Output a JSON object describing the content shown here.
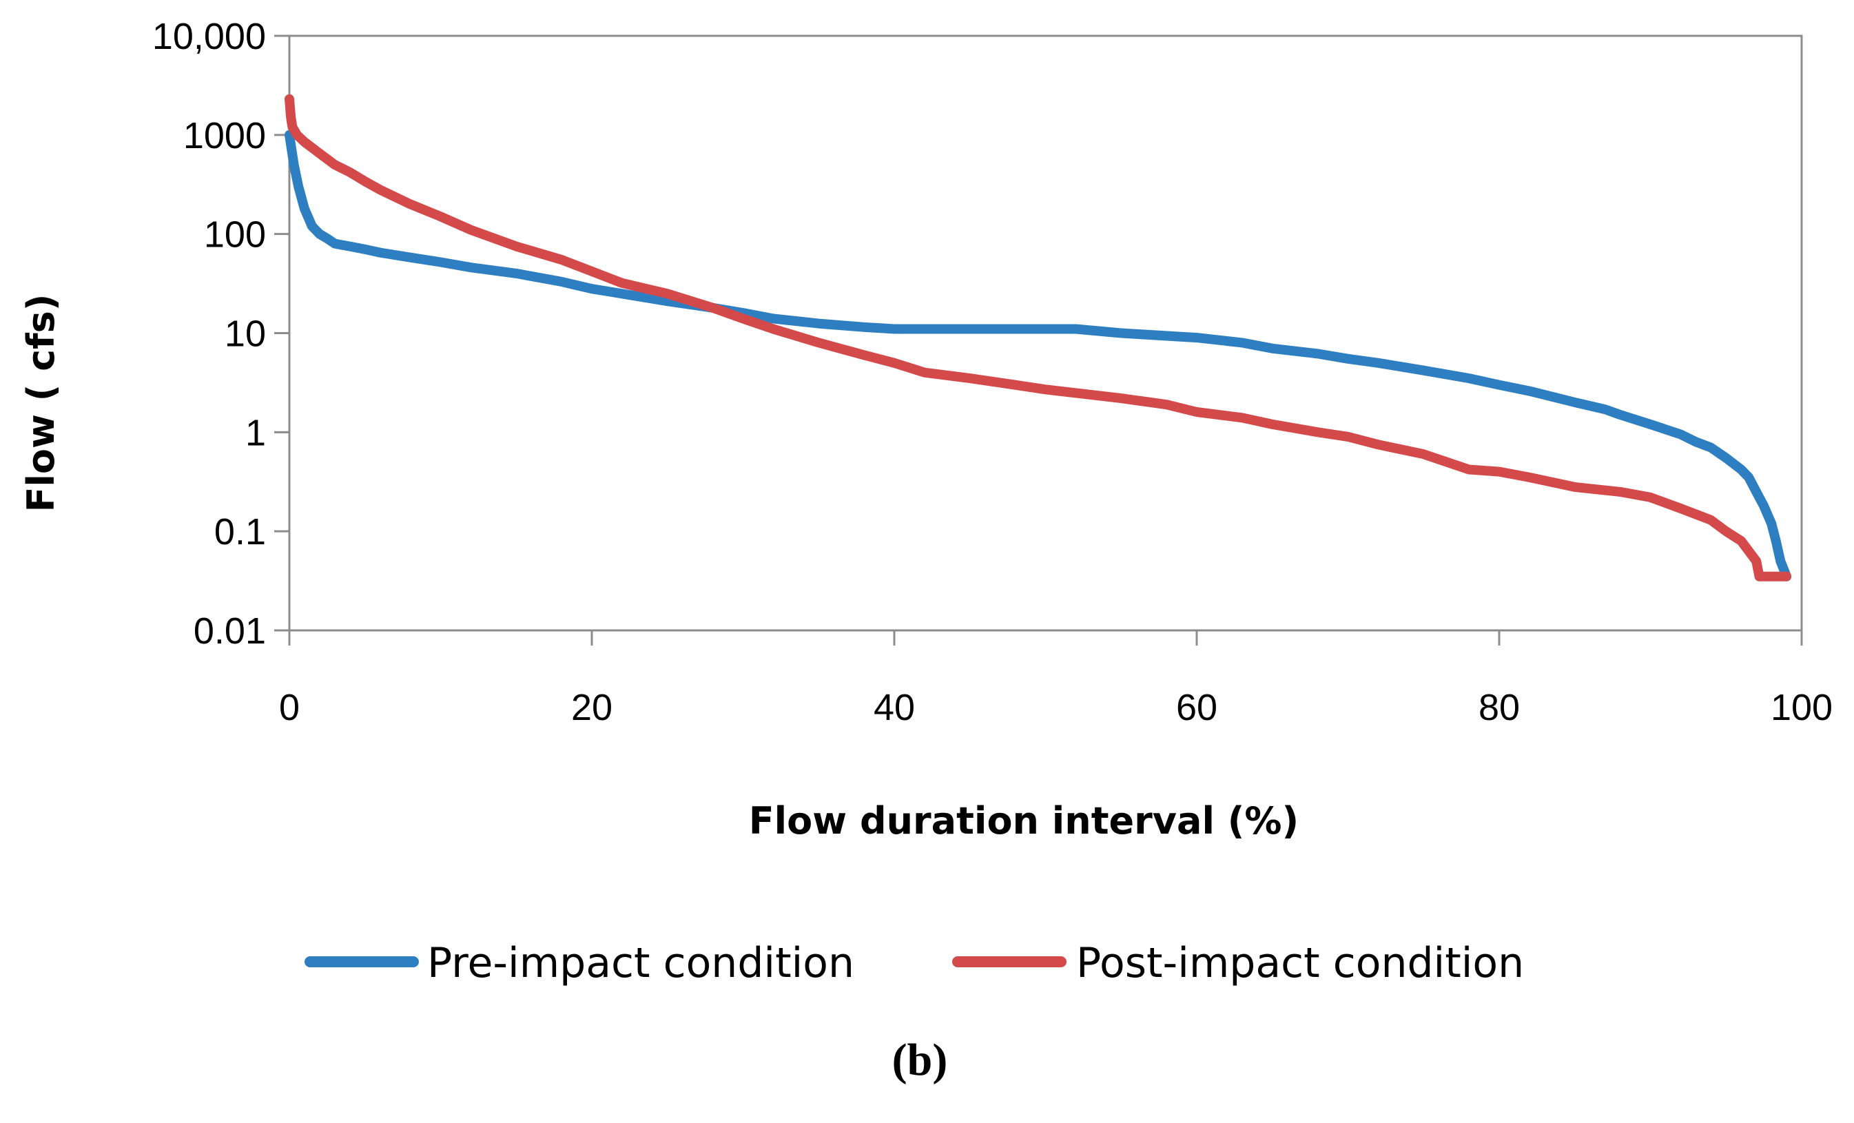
{
  "caption": "(b)",
  "chart_data": {
    "type": "line",
    "title": "",
    "xlabel": "Flow duration interval (%)",
    "ylabel": "Flow ( cfs)",
    "xlim": [
      0,
      100
    ],
    "ylim": [
      0.01,
      10000
    ],
    "yscale": "log",
    "x_ticks": [
      "0",
      "20",
      "40",
      "60",
      "80",
      "100"
    ],
    "y_ticks": [
      "0.01",
      "0.1",
      "1",
      "10",
      "100",
      "1000",
      "10,000"
    ],
    "legend_position": "bottom",
    "series": [
      {
        "name": "Pre-impact condition",
        "color": "#2e7fc1",
        "x": [
          0,
          0.3,
          0.6,
          1,
          1.5,
          2,
          2.5,
          3,
          4,
          5,
          6,
          8,
          10,
          12,
          15,
          18,
          20,
          22,
          25,
          28,
          30,
          32,
          35,
          38,
          40,
          45,
          50,
          52,
          55,
          60,
          63,
          65,
          68,
          70,
          72,
          75,
          78,
          80,
          82,
          85,
          87,
          88,
          90,
          92,
          93,
          94,
          95,
          96,
          96.5,
          97,
          97.5,
          98,
          98.3,
          98.6,
          99
        ],
        "y": [
          1000,
          500,
          300,
          180,
          120,
          100,
          90,
          80,
          75,
          70,
          65,
          58,
          52,
          46,
          40,
          33,
          28,
          25,
          21,
          18,
          16,
          14,
          12.5,
          11.5,
          11,
          11,
          11,
          11,
          10,
          9,
          8,
          7,
          6.2,
          5.5,
          5,
          4.2,
          3.5,
          3,
          2.6,
          2,
          1.7,
          1.5,
          1.2,
          0.95,
          0.8,
          0.7,
          0.55,
          0.42,
          0.35,
          0.25,
          0.18,
          0.12,
          0.08,
          0.05,
          0.035
        ]
      },
      {
        "name": "Post-impact condition",
        "color": "#d44a4a",
        "x": [
          0,
          0.1,
          0.2,
          0.5,
          1,
          2,
          3,
          4,
          5,
          6,
          8,
          10,
          12,
          15,
          18,
          20,
          22,
          25,
          28,
          30,
          32,
          35,
          38,
          40,
          42,
          45,
          48,
          50,
          55,
          58,
          60,
          63,
          65,
          68,
          70,
          72,
          75,
          78,
          80,
          82,
          85,
          88,
          90,
          92,
          94,
          95,
          96,
          97,
          97.2,
          99
        ],
        "y": [
          2300,
          1500,
          1200,
          1000,
          850,
          650,
          500,
          420,
          340,
          280,
          200,
          150,
          110,
          75,
          55,
          42,
          32,
          25,
          18,
          14,
          11,
          8,
          6,
          5,
          4,
          3.5,
          3,
          2.7,
          2.2,
          1.9,
          1.6,
          1.4,
          1.2,
          1.0,
          0.9,
          0.75,
          0.6,
          0.42,
          0.4,
          0.35,
          0.28,
          0.25,
          0.22,
          0.17,
          0.13,
          0.1,
          0.08,
          0.05,
          0.035,
          0.035
        ]
      }
    ]
  }
}
